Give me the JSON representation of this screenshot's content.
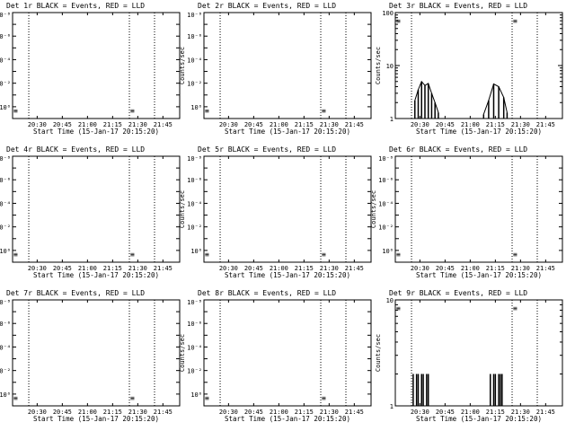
{
  "colors": {
    "events": "#000000",
    "lld": "#ff0000",
    "background": "#ffffff"
  },
  "chart_data": [
    {
      "type": "line",
      "title": "Det 1r BLACK = Events, RED = LLD",
      "xlabel": "Start Time (15-Jan-17 20:15:20)",
      "ylabel": "Counts/sec",
      "xticks": [
        "20:30",
        "20:45",
        "21:00",
        "21:15",
        "21:30",
        "21:45"
      ],
      "ytick_labels": [
        "10⁻⁸",
        "10⁻⁶",
        "10⁻⁴",
        "10⁻²",
        "10⁰"
      ],
      "y_scale": "log",
      "ylim_exp": [
        0,
        9
      ],
      "vlines": [
        "20:25",
        "21:25",
        "21:40"
      ],
      "series": []
    },
    {
      "type": "line",
      "title": "Det 2r BLACK = Events, RED = LLD",
      "xlabel": "Start Time (15-Jan-17 20:15:20)",
      "ylabel": "Counts/sec",
      "xticks": [
        "20:30",
        "20:45",
        "21:00",
        "21:15",
        "21:30",
        "21:45"
      ],
      "ytick_labels": [
        "10⁻⁸",
        "10⁻⁶",
        "10⁻⁴",
        "10⁻²",
        "10⁰"
      ],
      "y_scale": "log",
      "ylim_exp": [
        0,
        9
      ],
      "vlines": [
        "20:25",
        "21:25",
        "21:40"
      ],
      "series": []
    },
    {
      "type": "line",
      "title": "Det 3r BLACK = Events, RED = LLD",
      "xlabel": "Start Time (15-Jan-17 20:15:20)",
      "ylabel": "Counts/sec",
      "xticks": [
        "20:30",
        "20:45",
        "21:00",
        "21:15",
        "21:30",
        "21:45"
      ],
      "ytick_labels": [
        "100",
        "10",
        "1"
      ],
      "y_scale": "log",
      "ylim": [
        1,
        100
      ],
      "vlines": [
        "20:25",
        "21:25",
        "21:40"
      ],
      "series": [
        {
          "x": [
            "20:27",
            "20:29",
            "20:31",
            "20:33",
            "20:35",
            "20:37",
            "20:39",
            "20:41",
            "21:08",
            "21:11",
            "21:14",
            "21:17",
            "21:20",
            "21:22"
          ],
          "values": [
            2.2,
            3.5,
            5.0,
            4.2,
            4.6,
            3.0,
            2.0,
            1.3,
            1.2,
            2.2,
            4.5,
            4.0,
            2.5,
            1.3
          ]
        }
      ]
    },
    {
      "type": "line",
      "title": "Det 4r BLACK = Events, RED = LLD",
      "xlabel": "Start Time (15-Jan-17 20:15:20)",
      "ylabel": "Counts/sec",
      "xticks": [
        "20:30",
        "20:45",
        "21:00",
        "21:15",
        "21:30",
        "21:45"
      ],
      "ytick_labels": [
        "10⁻⁸",
        "10⁻⁶",
        "10⁻⁴",
        "10⁻²",
        "10⁰"
      ],
      "y_scale": "log",
      "ylim_exp": [
        0,
        9
      ],
      "vlines": [
        "20:25",
        "21:25",
        "21:40"
      ],
      "series": []
    },
    {
      "type": "line",
      "title": "Det 5r BLACK = Events, RED = LLD",
      "xlabel": "Start Time (15-Jan-17 20:15:20)",
      "ylabel": "Counts/sec",
      "xticks": [
        "20:30",
        "20:45",
        "21:00",
        "21:15",
        "21:30",
        "21:45"
      ],
      "ytick_labels": [
        "10⁻⁸",
        "10⁻⁶",
        "10⁻⁴",
        "10⁻²",
        "10⁰"
      ],
      "y_scale": "log",
      "ylim_exp": [
        0,
        9
      ],
      "vlines": [
        "20:25",
        "21:25",
        "21:40"
      ],
      "series": []
    },
    {
      "type": "line",
      "title": "Det 6r BLACK = Events, RED = LLD",
      "xlabel": "Start Time (15-Jan-17 20:15:20)",
      "ylabel": "Counts/sec",
      "xticks": [
        "20:30",
        "20:45",
        "21:00",
        "21:15",
        "21:30",
        "21:45"
      ],
      "ytick_labels": [
        "10⁻⁸",
        "10⁻⁶",
        "10⁻⁴",
        "10⁻²",
        "10⁰"
      ],
      "y_scale": "log",
      "ylim_exp": [
        0,
        9
      ],
      "vlines": [
        "20:25",
        "21:25",
        "21:40"
      ],
      "series": []
    },
    {
      "type": "line",
      "title": "Det 7r BLACK = Events, RED = LLD",
      "xlabel": "Start Time (15-Jan-17 20:15:20)",
      "ylabel": "Counts/sec",
      "xticks": [
        "20:30",
        "20:45",
        "21:00",
        "21:15",
        "21:30",
        "21:45"
      ],
      "ytick_labels": [
        "10⁻⁸",
        "10⁻⁶",
        "10⁻⁴",
        "10⁻²",
        "10⁰"
      ],
      "y_scale": "log",
      "ylim_exp": [
        0,
        9
      ],
      "vlines": [
        "20:25",
        "21:25",
        "21:40"
      ],
      "series": []
    },
    {
      "type": "line",
      "title": "Det 8r BLACK = Events, RED = LLD",
      "xlabel": "Start Time (15-Jan-17 20:15:20)",
      "ylabel": "Counts/sec",
      "xticks": [
        "20:30",
        "20:45",
        "21:00",
        "21:15",
        "21:30",
        "21:45"
      ],
      "ytick_labels": [
        "10⁻⁸",
        "10⁻⁶",
        "10⁻⁴",
        "10⁻²",
        "10⁰"
      ],
      "y_scale": "log",
      "ylim_exp": [
        0,
        9
      ],
      "vlines": [
        "20:25",
        "21:25",
        "21:40"
      ],
      "series": []
    },
    {
      "type": "line",
      "title": "Det 9r BLACK = Events, RED = LLD",
      "xlabel": "Start Time (15-Jan-17 20:15:20)",
      "ylabel": "Counts/sec",
      "xticks": [
        "20:30",
        "20:45",
        "21:00",
        "21:15",
        "21:30",
        "21:45"
      ],
      "ytick_labels": [
        "10",
        "1"
      ],
      "y_scale": "log",
      "ylim": [
        1,
        10
      ],
      "vlines": [
        "20:25",
        "21:25",
        "21:40"
      ],
      "series": [
        {
          "x": [
            "20:26",
            "20:27",
            "20:28",
            "20:29",
            "20:30",
            "20:31",
            "20:32",
            "20:33",
            "20:34",
            "20:35",
            "21:12",
            "21:13",
            "21:14",
            "21:15",
            "21:16",
            "21:17",
            "21:18",
            "21:19"
          ],
          "values": [
            2,
            1,
            2,
            2,
            1,
            2,
            2,
            1,
            2,
            2,
            2,
            1,
            2,
            2,
            1,
            2,
            2,
            2
          ]
        }
      ]
    }
  ]
}
